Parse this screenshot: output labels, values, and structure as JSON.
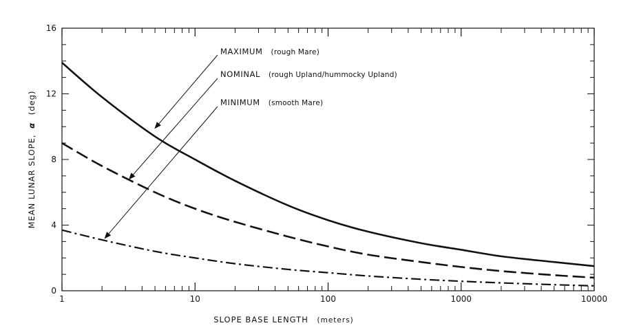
{
  "chart_data": {
    "type": "line",
    "xlabel": "SLOPE BASE LENGTH",
    "xlabel_unit": "(meters)",
    "ylabel": "MEAN LUNAR SLOPE,",
    "ylabel_symbol": "α",
    "ylabel_unit": "(deg)",
    "x_scale": "log",
    "xlim": [
      1,
      10000
    ],
    "ylim": [
      0,
      16
    ],
    "x_ticks": [
      1,
      10,
      100,
      1000,
      10000
    ],
    "x_tick_labels": [
      "1",
      "10",
      "100",
      "1000",
      "10000"
    ],
    "y_ticks": [
      0,
      4,
      8,
      12,
      16
    ],
    "y_tick_labels": [
      "0",
      "4",
      "8",
      "12",
      "16"
    ],
    "grid": false,
    "series": [
      {
        "name": "MAXIMUM",
        "line_style": "solid",
        "color": "#111111",
        "x": [
          1,
          2,
          5,
          10,
          20,
          50,
          100,
          200,
          500,
          1000,
          2000,
          5000,
          10000
        ],
        "y": [
          13.9,
          11.8,
          9.4,
          8.0,
          6.7,
          5.2,
          4.3,
          3.6,
          2.9,
          2.5,
          2.1,
          1.75,
          1.5
        ]
      },
      {
        "name": "NOMINAL",
        "line_style": "dashed",
        "color": "#111111",
        "x": [
          1,
          2,
          5,
          10,
          20,
          50,
          100,
          200,
          500,
          1000,
          2000,
          5000,
          10000
        ],
        "y": [
          9.0,
          7.6,
          6.0,
          5.0,
          4.2,
          3.3,
          2.7,
          2.2,
          1.75,
          1.45,
          1.2,
          0.95,
          0.8
        ]
      },
      {
        "name": "MINIMUM",
        "line_style": "dashdot",
        "color": "#111111",
        "x": [
          1,
          2,
          5,
          10,
          20,
          50,
          100,
          200,
          500,
          1000,
          2000,
          5000,
          10000
        ],
        "y": [
          3.7,
          3.1,
          2.4,
          2.0,
          1.65,
          1.3,
          1.1,
          0.9,
          0.7,
          0.58,
          0.48,
          0.37,
          0.3
        ]
      }
    ],
    "annotations": [
      {
        "series": "MAXIMUM",
        "label": "MAXIMUM",
        "note": "(rough Mare)",
        "points_to_x": 5,
        "points_to_y": 9.9
      },
      {
        "series": "NOMINAL",
        "label": "NOMINAL",
        "note": "(rough Upland/hummocky Upland)",
        "points_to_x": 3.2,
        "points_to_y": 6.8
      },
      {
        "series": "MINIMUM",
        "label": "MINIMUM",
        "note": "(smooth Mare)",
        "points_to_x": 2.1,
        "points_to_y": 3.2
      }
    ]
  }
}
